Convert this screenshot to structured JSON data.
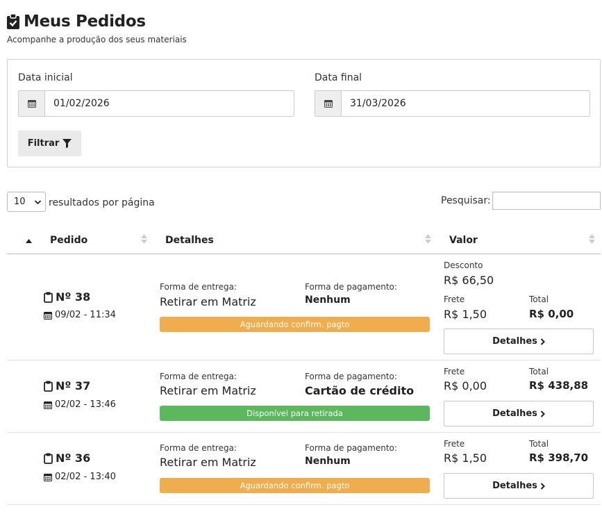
{
  "header": {
    "title": "Meus Pedidos",
    "subtitle": "Acompanhe a produção dos seus materiais"
  },
  "filter": {
    "start_label": "Data inicial",
    "start_value": "01/02/2026",
    "end_label": "Data final",
    "end_value": "31/03/2026",
    "button_label": "Filtrar"
  },
  "table_controls": {
    "page_length": "10",
    "page_length_label": "resultados por página",
    "search_label": "Pesquisar:"
  },
  "columns": {
    "order": "Pedido",
    "details": "Detalhes",
    "value": "Valor"
  },
  "labels": {
    "delivery": "Forma de entrega:",
    "payment": "Forma de pagamento:",
    "discount": "Desconto",
    "shipping": "Frete",
    "total": "Total",
    "details_button": "Detalhes"
  },
  "status_colors": {
    "pending": "#f0ad4e",
    "ready": "#5cb85c"
  },
  "orders": [
    {
      "number": "Nº 38",
      "date": "09/02 - 11:34",
      "delivery": "Retirar em Matriz",
      "payment": "Nenhum",
      "status": "Aguardando confirm. pagto",
      "discount": "R$ 66,50",
      "shipping": "R$ 1,50",
      "total": "R$ 0,00"
    },
    {
      "number": "Nº 37",
      "date": "02/02 - 13:46",
      "delivery": "Retirar em Matriz",
      "payment": "Cartão de crédito",
      "status": "Disponível para retirada",
      "shipping": "R$ 0,00",
      "total": "R$ 438,88"
    },
    {
      "number": "Nº 36",
      "date": "02/02 - 13:40",
      "delivery": "Retirar em Matriz",
      "payment": "Nenhum",
      "status": "Aguardando confirm. pagto",
      "shipping": "R$ 1,50",
      "total": "R$ 398,70"
    }
  ]
}
